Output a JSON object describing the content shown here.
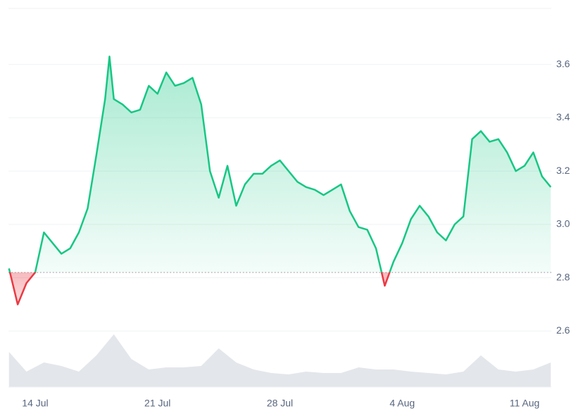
{
  "chart_data": {
    "type": "line",
    "x": [
      -1.5,
      -1,
      -0.5,
      0,
      0.5,
      1,
      1.5,
      2,
      2.5,
      3,
      3.5,
      4,
      4.25,
      4.5,
      5,
      5.5,
      6,
      6.5,
      7,
      7.5,
      8,
      8.5,
      9,
      9.5,
      10,
      10.5,
      11,
      11.5,
      12,
      12.5,
      13,
      13.5,
      14,
      14.5,
      15,
      15.5,
      16,
      16.5,
      17,
      17.5,
      18,
      18.5,
      19,
      19.5,
      20,
      20.5,
      21,
      21.5,
      22,
      22.5,
      23,
      23.5,
      24,
      24.5,
      25,
      25.5,
      26,
      26.5,
      27,
      27.5,
      28,
      28.5,
      29,
      29.5
    ],
    "values": [
      2.835,
      2.7,
      2.78,
      2.82,
      2.97,
      2.93,
      2.89,
      2.91,
      2.97,
      3.06,
      3.26,
      3.47,
      3.63,
      3.47,
      3.45,
      3.42,
      3.43,
      3.52,
      3.49,
      3.57,
      3.52,
      3.53,
      3.55,
      3.45,
      3.2,
      3.1,
      3.22,
      3.07,
      3.15,
      3.19,
      3.19,
      3.22,
      3.24,
      3.2,
      3.16,
      3.14,
      3.13,
      3.11,
      3.13,
      3.15,
      3.05,
      2.99,
      2.98,
      2.91,
      2.77,
      2.86,
      2.93,
      3.02,
      3.07,
      3.03,
      2.97,
      2.94,
      3.0,
      3.03,
      3.32,
      3.35,
      3.31,
      3.32,
      3.27,
      3.2,
      3.22,
      3.27,
      3.18,
      3.14
    ],
    "baseline": 2.82,
    "color_up": "#16c784",
    "color_down": "#ea3943",
    "xlim": [
      -1.53,
      29.53
    ],
    "xticks": [
      {
        "value": 0,
        "label": "14 Jul"
      },
      {
        "value": 7,
        "label": "21 Jul"
      },
      {
        "value": 14,
        "label": "28 Jul"
      },
      {
        "value": 21,
        "label": "4 Aug"
      },
      {
        "value": 28,
        "label": "11 Aug"
      }
    ],
    "ylim": [
      2.39,
      3.81
    ],
    "yticks": [
      2.6,
      2.8,
      {
        "value": 3,
        "label": "3.0"
      },
      3.2,
      3.4,
      3.6
    ],
    "grid": true,
    "volume": {
      "x": [
        -1.5,
        -0.5,
        0.5,
        1.5,
        2.5,
        3.5,
        4.5,
        5.5,
        6.5,
        7.5,
        8.5,
        9.5,
        10.5,
        11.5,
        12.5,
        13.5,
        14.5,
        15.5,
        16.5,
        17.5,
        18.5,
        19.5,
        20.5,
        21.5,
        22.5,
        23.5,
        24.5,
        25.5,
        26.5,
        27.5,
        28.5,
        29.5
      ],
      "values": [
        50,
        22,
        35,
        30,
        22,
        45,
        75,
        40,
        25,
        28,
        28,
        30,
        55,
        35,
        25,
        20,
        18,
        22,
        20,
        20,
        28,
        25,
        25,
        22,
        20,
        18,
        22,
        45,
        25,
        22,
        25,
        35
      ],
      "color": "#e3e6ea",
      "vlim": [
        0,
        100
      ]
    }
  }
}
